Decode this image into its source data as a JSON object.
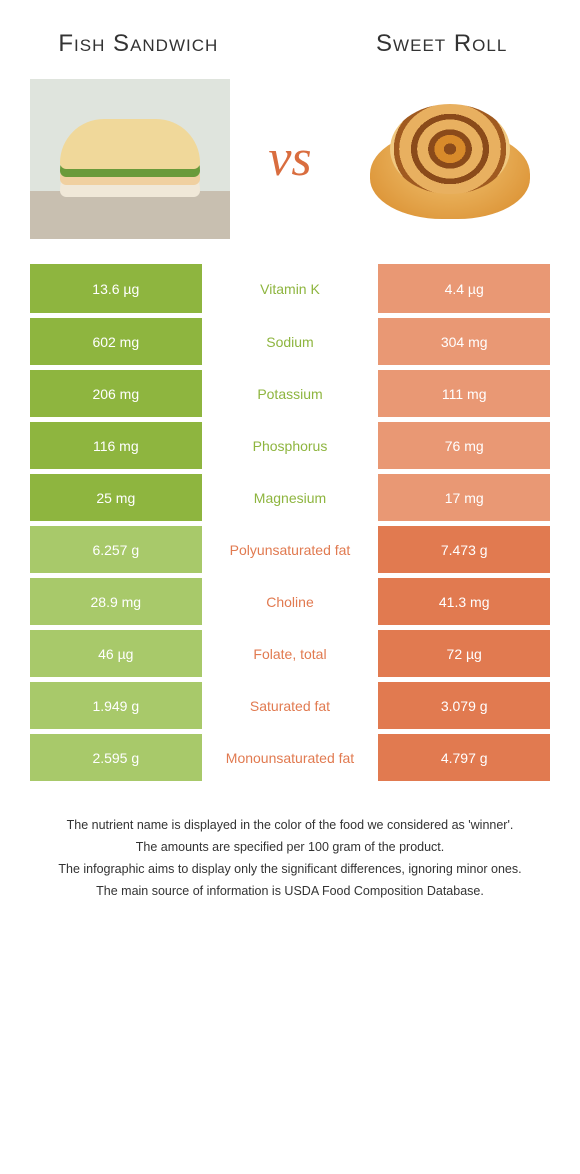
{
  "header": {
    "left_title": "Fish Sandwich",
    "right_title": "Sweet Roll",
    "vs_label": "vs"
  },
  "colors": {
    "green_win": "#8eb53f",
    "green_lose": "#8eb53f",
    "orange_win": "#e17a50",
    "orange_lose": "#e99874",
    "green_text": "#8eb53f",
    "orange_text": "#e17a50",
    "green_lose_cell": "#a8c96a"
  },
  "rows": [
    {
      "left": "13.6 µg",
      "label": "Vitamin K",
      "right": "4.4 µg",
      "winner": "left"
    },
    {
      "left": "602 mg",
      "label": "Sodium",
      "right": "304 mg",
      "winner": "left"
    },
    {
      "left": "206 mg",
      "label": "Potassium",
      "right": "111 mg",
      "winner": "left"
    },
    {
      "left": "116 mg",
      "label": "Phosphorus",
      "right": "76 mg",
      "winner": "left"
    },
    {
      "left": "25 mg",
      "label": "Magnesium",
      "right": "17 mg",
      "winner": "left"
    },
    {
      "left": "6.257 g",
      "label": "Polyunsaturated fat",
      "right": "7.473 g",
      "winner": "right"
    },
    {
      "left": "28.9 mg",
      "label": "Choline",
      "right": "41.3 mg",
      "winner": "right"
    },
    {
      "left": "46 µg",
      "label": "Folate, total",
      "right": "72 µg",
      "winner": "right"
    },
    {
      "left": "1.949 g",
      "label": "Saturated fat",
      "right": "3.079 g",
      "winner": "right"
    },
    {
      "left": "2.595 g",
      "label": "Monounsaturated fat",
      "right": "4.797 g",
      "winner": "right"
    }
  ],
  "footer": {
    "line1": "The nutrient name is displayed in the color of the food we considered as 'winner'.",
    "line2": "The amounts are specified per 100 gram of the product.",
    "line3": "The infographic aims to display only the significant differences, ignoring minor ones.",
    "line4": "The main source of information is USDA Food Composition Database."
  }
}
